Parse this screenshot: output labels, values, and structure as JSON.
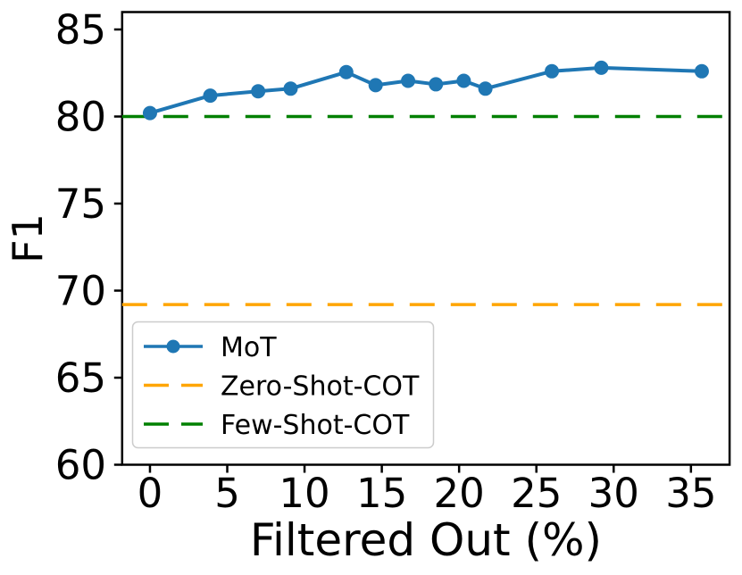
{
  "figure": {
    "background": "#ffffff"
  },
  "chart_data": {
    "type": "line",
    "title": "",
    "xlabel": "Filtered Out (%)",
    "ylabel": "F1",
    "xlim": [
      -1.8,
      37.5
    ],
    "ylim": [
      60,
      86
    ],
    "xticks": [
      0,
      5,
      10,
      15,
      20,
      25,
      30,
      35
    ],
    "yticks": [
      60,
      65,
      70,
      75,
      80,
      85
    ],
    "grid": false,
    "legend_position": "lower-left",
    "axis_color": "#000000",
    "legend_border_color": "#cccccc",
    "series": [
      {
        "name": "MoT",
        "style": "solid-line-with-circle-markers",
        "color": "#1f77b4",
        "x": [
          0,
          3.9,
          7,
          9.1,
          12.7,
          14.6,
          16.7,
          18.5,
          20.3,
          21.7,
          26,
          29.2,
          35.7
        ],
        "y": [
          80.2,
          81.2,
          81.45,
          81.6,
          82.55,
          81.8,
          82.05,
          81.85,
          82.05,
          81.6,
          82.6,
          82.8,
          82.6
        ]
      },
      {
        "name": "Zero-Shot-COT",
        "style": "dashed-horizontal-line",
        "color": "#ffa500",
        "value": 69.2
      },
      {
        "name": "Few-Shot-COT",
        "style": "dashed-horizontal-line",
        "color": "#008000",
        "value": 80.0
      }
    ]
  }
}
